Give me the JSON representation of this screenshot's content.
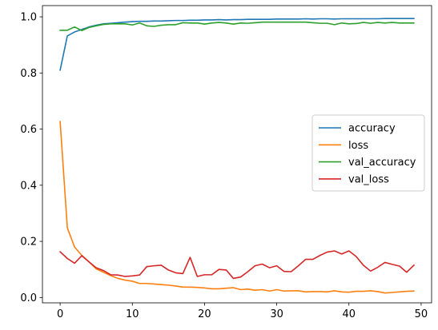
{
  "chart_data": {
    "type": "line",
    "title": "",
    "xlabel": "",
    "ylabel": "",
    "xlim": [
      -2.45,
      51.45
    ],
    "ylim": [
      -0.019,
      1.04
    ],
    "xticks": [
      0,
      10,
      20,
      30,
      40,
      50
    ],
    "yticks": [
      0.0,
      0.2,
      0.4,
      0.6,
      0.8,
      1.0
    ],
    "xtick_labels": [
      "0",
      "10",
      "20",
      "30",
      "40",
      "50"
    ],
    "ytick_labels": [
      "0.0",
      "0.2",
      "0.4",
      "0.6",
      "0.8",
      "1.0"
    ],
    "grid": false,
    "legend_position": "center-right",
    "x": [
      0,
      1,
      2,
      3,
      4,
      5,
      6,
      7,
      8,
      9,
      10,
      11,
      12,
      13,
      14,
      15,
      16,
      17,
      18,
      19,
      20,
      21,
      22,
      23,
      24,
      25,
      26,
      27,
      28,
      29,
      30,
      31,
      32,
      33,
      34,
      35,
      36,
      37,
      38,
      39,
      40,
      41,
      42,
      43,
      44,
      45,
      46,
      47,
      48,
      49
    ],
    "series": [
      {
        "name": "accuracy",
        "color": "#1f77b4",
        "values": [
          0.81,
          0.932,
          0.946,
          0.955,
          0.964,
          0.97,
          0.975,
          0.977,
          0.979,
          0.981,
          0.983,
          0.984,
          0.984,
          0.985,
          0.985,
          0.986,
          0.987,
          0.987,
          0.988,
          0.988,
          0.989,
          0.989,
          0.99,
          0.989,
          0.99,
          0.99,
          0.991,
          0.991,
          0.991,
          0.991,
          0.992,
          0.992,
          0.992,
          0.992,
          0.993,
          0.992,
          0.993,
          0.993,
          0.992,
          0.993,
          0.993,
          0.993,
          0.993,
          0.993,
          0.993,
          0.994,
          0.994,
          0.994,
          0.994,
          0.994
        ]
      },
      {
        "name": "loss",
        "color": "#ff7f0e",
        "values": [
          0.627,
          0.248,
          0.18,
          0.15,
          0.127,
          0.102,
          0.09,
          0.078,
          0.068,
          0.062,
          0.058,
          0.05,
          0.05,
          0.048,
          0.046,
          0.044,
          0.041,
          0.037,
          0.037,
          0.036,
          0.034,
          0.031,
          0.031,
          0.033,
          0.035,
          0.028,
          0.03,
          0.026,
          0.028,
          0.023,
          0.028,
          0.023,
          0.024,
          0.024,
          0.02,
          0.021,
          0.021,
          0.02,
          0.024,
          0.02,
          0.019,
          0.022,
          0.022,
          0.024,
          0.021,
          0.016,
          0.018,
          0.02,
          0.022,
          0.023
        ]
      },
      {
        "name": "val_accuracy",
        "color": "#2ca02c",
        "values": [
          0.952,
          0.952,
          0.964,
          0.951,
          0.962,
          0.968,
          0.973,
          0.975,
          0.975,
          0.975,
          0.971,
          0.978,
          0.968,
          0.966,
          0.97,
          0.972,
          0.972,
          0.979,
          0.978,
          0.978,
          0.974,
          0.978,
          0.98,
          0.978,
          0.974,
          0.978,
          0.977,
          0.979,
          0.981,
          0.981,
          0.981,
          0.981,
          0.981,
          0.981,
          0.981,
          0.979,
          0.977,
          0.977,
          0.972,
          0.978,
          0.975,
          0.976,
          0.98,
          0.977,
          0.98,
          0.978,
          0.98,
          0.978,
          0.978,
          0.978
        ]
      },
      {
        "name": "val_loss",
        "color": "#d62728",
        "values": [
          0.163,
          0.139,
          0.122,
          0.149,
          0.127,
          0.106,
          0.096,
          0.081,
          0.08,
          0.075,
          0.077,
          0.08,
          0.11,
          0.113,
          0.115,
          0.098,
          0.088,
          0.085,
          0.143,
          0.075,
          0.081,
          0.081,
          0.1,
          0.098,
          0.068,
          0.073,
          0.092,
          0.113,
          0.119,
          0.106,
          0.113,
          0.093,
          0.092,
          0.113,
          0.136,
          0.136,
          0.15,
          0.162,
          0.166,
          0.155,
          0.166,
          0.146,
          0.115,
          0.094,
          0.108,
          0.125,
          0.118,
          0.112,
          0.09,
          0.115
        ]
      }
    ]
  }
}
